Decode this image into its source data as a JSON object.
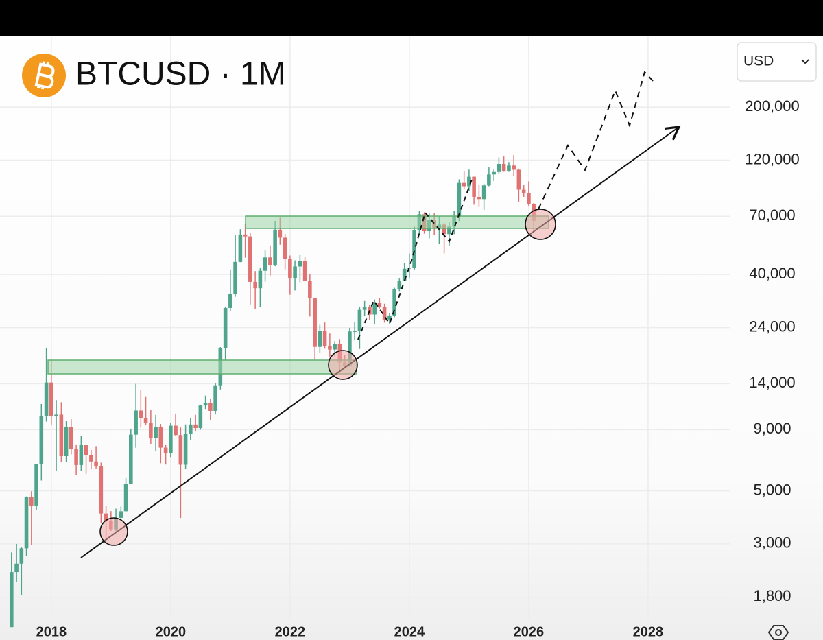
{
  "chart_data": {
    "type": "candlestick",
    "title": "BTCUSD · 1M",
    "currency": "USD",
    "log_scale": true,
    "grid": true,
    "up_color": "#4ea58c",
    "down_color": "#e07272",
    "xlim": [
      2017.14,
      2029.38
    ],
    "xticks": [
      2018,
      2020,
      2022,
      2024,
      2026,
      2028
    ],
    "ylim": [
      1500,
      400000
    ],
    "yticks": [
      {
        "value": 1800,
        "label": "1,800"
      },
      {
        "value": 3000,
        "label": "3,000"
      },
      {
        "value": 5000,
        "label": "5,000"
      },
      {
        "value": 9000,
        "label": "9,000"
      },
      {
        "value": 14000,
        "label": "14,000"
      },
      {
        "value": 24000,
        "label": "24,000"
      },
      {
        "value": 40000,
        "label": "40,000"
      },
      {
        "value": 70000,
        "label": "70,000"
      },
      {
        "value": 120000,
        "label": "120,000"
      },
      {
        "value": 200000,
        "label": "200,000"
      }
    ],
    "x": [
      2017.333,
      2017.417,
      2017.5,
      2017.583,
      2017.667,
      2017.75,
      2017.833,
      2017.917,
      2018.0,
      2018.083,
      2018.167,
      2018.25,
      2018.333,
      2018.417,
      2018.5,
      2018.583,
      2018.667,
      2018.75,
      2018.833,
      2018.917,
      2019.0,
      2019.083,
      2019.167,
      2019.25,
      2019.333,
      2019.417,
      2019.5,
      2019.583,
      2019.667,
      2019.75,
      2019.833,
      2019.917,
      2020.0,
      2020.083,
      2020.167,
      2020.25,
      2020.333,
      2020.417,
      2020.5,
      2020.583,
      2020.667,
      2020.75,
      2020.833,
      2020.917,
      2021.0,
      2021.083,
      2021.167,
      2021.25,
      2021.333,
      2021.417,
      2021.5,
      2021.583,
      2021.667,
      2021.75,
      2021.833,
      2021.917,
      2022.0,
      2022.083,
      2022.167,
      2022.25,
      2022.333,
      2022.417,
      2022.5,
      2022.583,
      2022.667,
      2022.75,
      2022.833,
      2022.917,
      2023.0,
      2023.083,
      2023.167,
      2023.25,
      2023.333,
      2023.417,
      2023.5,
      2023.583,
      2023.667,
      2023.75,
      2023.833,
      2023.917,
      2024.0,
      2024.083,
      2024.167,
      2024.25,
      2024.333,
      2024.417,
      2024.5,
      2024.583,
      2024.667,
      2024.75,
      2024.833,
      2024.917,
      2025.0,
      2025.083,
      2025.167,
      2025.25,
      2025.333,
      2025.417,
      2025.5,
      2025.583,
      2025.667,
      2025.75,
      2025.833,
      2025.917,
      2026.0,
      2026.083
    ],
    "open": [
      1348,
      2286,
      2480,
      2875,
      4703,
      4339,
      6468,
      10233,
      14156,
      10221,
      10397,
      6973,
      9240,
      7494,
      6404,
      7780,
      7037,
      6625,
      6317,
      4017,
      3742,
      3457,
      3854,
      4105,
      5350,
      8574,
      10817,
      10085,
      9630,
      8293,
      9199,
      7569,
      7194,
      9350,
      8544,
      6424,
      8624,
      9455,
      9138,
      11351,
      11655,
      10779,
      13781,
      19700,
      28990,
      33114,
      45135,
      58740,
      57694,
      37253,
      35045,
      41461,
      47130,
      43824,
      61318,
      57005,
      46306,
      38483,
      43193,
      45538,
      37715,
      31793,
      19942,
      23293,
      20050,
      19432,
      20495,
      17168,
      16542,
      23125,
      23150,
      28478,
      29268,
      27219,
      30477,
      29232,
      25940,
      26967,
      34639,
      37720,
      42284,
      42582,
      61198,
      71333,
      60637,
      67491,
      62678,
      64626,
      58974,
      63329,
      70292,
      96449,
      93429,
      102405,
      84373,
      82549,
      94207,
      104638,
      107135,
      115760,
      108246,
      114049,
      109500,
      90400,
      87500,
      78600
    ],
    "high": [
      2763,
      3000,
      2900,
      4736,
      4975,
      6470,
      11517,
      19783,
      17712,
      11958,
      11711,
      9759,
      9964,
      7754,
      8474,
      7780,
      7410,
      7680,
      6552,
      4309,
      4109,
      4210,
      4296,
      5642,
      9074,
      13970,
      13130,
      12326,
      10905,
      10370,
      9505,
      7750,
      9578,
      10500,
      9188,
      9460,
      10067,
      10380,
      11444,
      12486,
      12067,
      14100,
      19888,
      29300,
      41950,
      58350,
      61800,
      64854,
      59500,
      41330,
      42448,
      50500,
      52920,
      67000,
      69000,
      59100,
      47990,
      45821,
      48190,
      47444,
      40023,
      31957,
      24668,
      25211,
      22673,
      21085,
      21480,
      18387,
      23960,
      25250,
      29200,
      31000,
      29820,
      31431,
      31804,
      30200,
      27483,
      35198,
      38450,
      44700,
      48969,
      63913,
      73750,
      72797,
      71979,
      71997,
      70079,
      65660,
      66498,
      73620,
      99800,
      108353,
      109588,
      102500,
      95000,
      95758,
      111980,
      110500,
      123218,
      124457,
      117900,
      126200,
      110700,
      94600,
      97900,
      79500
    ],
    "low": [
      1348,
      2076,
      1837,
      2665,
      2972,
      4150,
      5519,
      9722,
      9402,
      6048,
      6601,
      6575,
      7090,
      5826,
      6071,
      5880,
      6141,
      6197,
      3652,
      3156,
      3400,
      3391,
      3733,
      4096,
      5332,
      7564,
      9163,
      9421,
      7856,
      7300,
      6515,
      6435,
      6914,
      8450,
      3850,
      6150,
      8130,
      8833,
      8991,
      10983,
      9882,
      10416,
      13241,
      17572,
      28130,
      32296,
      45000,
      47000,
      30000,
      28800,
      29278,
      37332,
      39600,
      43300,
      53250,
      42000,
      32917,
      34322,
      37155,
      37697,
      26700,
      17622,
      18782,
      19600,
      18153,
      18200,
      15476,
      16256,
      16500,
      21400,
      19549,
      26942,
      25811,
      24800,
      28861,
      25166,
      24900,
      26540,
      34100,
      37600,
      38555,
      41884,
      59005,
      59191,
      56555,
      58402,
      53485,
      49000,
      52550,
      58946,
      66835,
      90500,
      89256,
      78258,
      76555,
      74500,
      93400,
      98200,
      105100,
      107300,
      107255,
      103500,
      80600,
      84400,
      77000,
      60000
    ],
    "close": [
      2286,
      2480,
      2875,
      4703,
      4339,
      6468,
      10233,
      14156,
      10221,
      10397,
      6973,
      9240,
      7494,
      6404,
      7780,
      7037,
      6625,
      6317,
      4017,
      3742,
      3457,
      3854,
      4105,
      5350,
      8574,
      10817,
      10085,
      9630,
      8293,
      9199,
      7569,
      7194,
      9350,
      8544,
      6424,
      8624,
      9455,
      9138,
      11351,
      11655,
      10779,
      13781,
      19700,
      28990,
      33114,
      45135,
      58740,
      57694,
      37253,
      35045,
      41461,
      47130,
      43824,
      61318,
      57005,
      46306,
      38483,
      43193,
      45538,
      37715,
      31793,
      19942,
      23293,
      20050,
      19432,
      20495,
      17168,
      16542,
      23125,
      23150,
      28478,
      29268,
      27219,
      30477,
      29232,
      25940,
      26967,
      34639,
      37720,
      42284,
      42582,
      61198,
      71333,
      60637,
      67491,
      62678,
      64626,
      58974,
      63329,
      70292,
      96449,
      93429,
      102405,
      84373,
      82549,
      94207,
      104638,
      107135,
      115760,
      108246,
      114049,
      109500,
      90400,
      87500,
      78600,
      67000
    ]
  }
}
